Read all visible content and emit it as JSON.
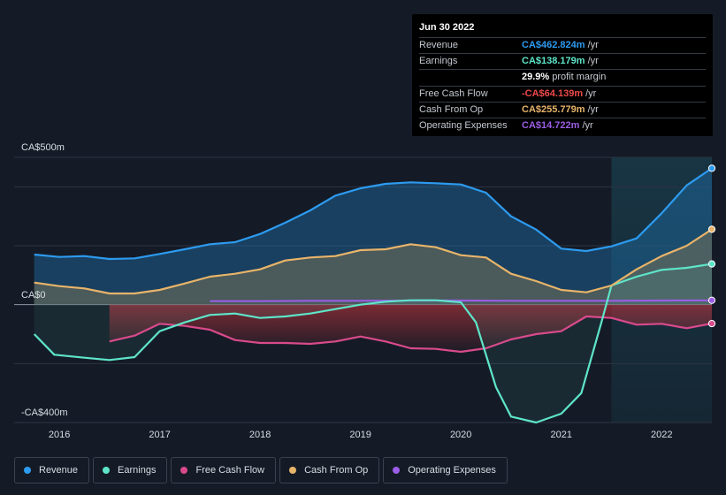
{
  "chart_data": {
    "type": "line",
    "y_axis": {
      "top_label": "CA$500m",
      "zero_label": "CA$0",
      "bottom_label": "-CA$400m",
      "range": [
        -400,
        500
      ]
    },
    "x_axis": {
      "ticks": [
        {
          "label": "2016",
          "t": 2016.0
        },
        {
          "label": "2017",
          "t": 2017.0
        },
        {
          "label": "2018",
          "t": 2018.0
        },
        {
          "label": "2019",
          "t": 2019.0
        },
        {
          "label": "2020",
          "t": 2020.0
        },
        {
          "label": "2021",
          "t": 2021.0
        },
        {
          "label": "2022",
          "t": 2022.0
        }
      ],
      "range": [
        2015.55,
        2022.5
      ],
      "forecast_start": 2021.5
    },
    "series": [
      {
        "name": "Revenue",
        "key": "revenue",
        "color": "#2d9bf0",
        "points": [
          [
            2015.75,
            170
          ],
          [
            2016.0,
            162
          ],
          [
            2016.25,
            165
          ],
          [
            2016.5,
            155
          ],
          [
            2016.75,
            157
          ],
          [
            2017.0,
            172
          ],
          [
            2017.25,
            188
          ],
          [
            2017.5,
            205
          ],
          [
            2017.75,
            212
          ],
          [
            2018.0,
            240
          ],
          [
            2018.25,
            278
          ],
          [
            2018.5,
            320
          ],
          [
            2018.75,
            370
          ],
          [
            2019.0,
            395
          ],
          [
            2019.25,
            410
          ],
          [
            2019.5,
            415
          ],
          [
            2019.75,
            412
          ],
          [
            2020.0,
            408
          ],
          [
            2020.25,
            380
          ],
          [
            2020.5,
            300
          ],
          [
            2020.75,
            255
          ],
          [
            2021.0,
            190
          ],
          [
            2021.25,
            182
          ],
          [
            2021.5,
            198
          ],
          [
            2021.75,
            225
          ],
          [
            2022.0,
            310
          ],
          [
            2022.25,
            405
          ],
          [
            2022.5,
            462.824
          ]
        ]
      },
      {
        "name": "Earnings",
        "key": "earnings",
        "color": "#5ee5c9",
        "points": [
          [
            2015.75,
            -100
          ],
          [
            2015.95,
            -170
          ],
          [
            2016.25,
            -180
          ],
          [
            2016.5,
            -188
          ],
          [
            2016.75,
            -178
          ],
          [
            2017.0,
            -90
          ],
          [
            2017.25,
            -60
          ],
          [
            2017.5,
            -35
          ],
          [
            2017.75,
            -30
          ],
          [
            2018.0,
            -45
          ],
          [
            2018.25,
            -40
          ],
          [
            2018.5,
            -30
          ],
          [
            2018.75,
            -15
          ],
          [
            2019.0,
            0
          ],
          [
            2019.25,
            10
          ],
          [
            2019.5,
            15
          ],
          [
            2019.75,
            15
          ],
          [
            2020.0,
            8
          ],
          [
            2020.15,
            -60
          ],
          [
            2020.35,
            -280
          ],
          [
            2020.5,
            -380
          ],
          [
            2020.75,
            -400
          ],
          [
            2021.0,
            -370
          ],
          [
            2021.2,
            -300
          ],
          [
            2021.4,
            -60
          ],
          [
            2021.5,
            65
          ],
          [
            2021.75,
            95
          ],
          [
            2022.0,
            118
          ],
          [
            2022.25,
            125
          ],
          [
            2022.5,
            138.179
          ]
        ]
      },
      {
        "name": "Free Cash Flow",
        "key": "fcf",
        "color": "#d94a8c",
        "points": [
          [
            2016.5,
            -125
          ],
          [
            2016.75,
            -105
          ],
          [
            2017.0,
            -65
          ],
          [
            2017.25,
            -72
          ],
          [
            2017.5,
            -85
          ],
          [
            2017.75,
            -120
          ],
          [
            2018.0,
            -130
          ],
          [
            2018.25,
            -130
          ],
          [
            2018.5,
            -133
          ],
          [
            2018.75,
            -125
          ],
          [
            2019.0,
            -108
          ],
          [
            2019.25,
            -125
          ],
          [
            2019.5,
            -148
          ],
          [
            2019.75,
            -150
          ],
          [
            2020.0,
            -160
          ],
          [
            2020.25,
            -148
          ],
          [
            2020.5,
            -118
          ],
          [
            2020.75,
            -100
          ],
          [
            2021.0,
            -90
          ],
          [
            2021.25,
            -40
          ],
          [
            2021.5,
            -45
          ],
          [
            2021.75,
            -68
          ],
          [
            2022.0,
            -65
          ],
          [
            2022.25,
            -80
          ],
          [
            2022.5,
            -64.139
          ]
        ]
      },
      {
        "name": "Cash From Op",
        "key": "cfo",
        "color": "#e8b46a",
        "points": [
          [
            2015.75,
            75
          ],
          [
            2016.0,
            63
          ],
          [
            2016.25,
            55
          ],
          [
            2016.5,
            38
          ],
          [
            2016.75,
            38
          ],
          [
            2017.0,
            50
          ],
          [
            2017.25,
            72
          ],
          [
            2017.5,
            95
          ],
          [
            2017.75,
            105
          ],
          [
            2018.0,
            120
          ],
          [
            2018.25,
            150
          ],
          [
            2018.5,
            160
          ],
          [
            2018.75,
            165
          ],
          [
            2019.0,
            185
          ],
          [
            2019.25,
            188
          ],
          [
            2019.5,
            205
          ],
          [
            2019.75,
            195
          ],
          [
            2020.0,
            168
          ],
          [
            2020.25,
            160
          ],
          [
            2020.5,
            105
          ],
          [
            2020.75,
            80
          ],
          [
            2021.0,
            50
          ],
          [
            2021.25,
            42
          ],
          [
            2021.5,
            65
          ],
          [
            2021.75,
            120
          ],
          [
            2022.0,
            165
          ],
          [
            2022.25,
            200
          ],
          [
            2022.5,
            255.779
          ]
        ]
      },
      {
        "name": "Operating Expenses",
        "key": "opex",
        "color": "#9b5de5",
        "points": [
          [
            2017.5,
            12
          ],
          [
            2018.0,
            12
          ],
          [
            2018.5,
            13
          ],
          [
            2019.0,
            13
          ],
          [
            2019.5,
            14
          ],
          [
            2020.0,
            14
          ],
          [
            2020.5,
            13
          ],
          [
            2021.0,
            13
          ],
          [
            2021.5,
            13
          ],
          [
            2022.0,
            14
          ],
          [
            2022.5,
            14.722
          ]
        ]
      }
    ]
  },
  "tooltip": {
    "date": "Jun 30 2022",
    "rows": [
      {
        "label": "Revenue",
        "value": "CA$462.824m",
        "unit": "/yr",
        "color": "#2d9bf0"
      },
      {
        "label": "Earnings",
        "value": "CA$138.179m",
        "unit": "/yr",
        "color": "#5ee5c9"
      },
      {
        "label": "",
        "value": "29.9%",
        "unit": "profit margin",
        "color": "#ffffff"
      },
      {
        "label": "Free Cash Flow",
        "value": "-CA$64.139m",
        "unit": "/yr",
        "color": "#ef4a4a"
      },
      {
        "label": "Cash From Op",
        "value": "CA$255.779m",
        "unit": "/yr",
        "color": "#e8b46a"
      },
      {
        "label": "Operating Expenses",
        "value": "CA$14.722m",
        "unit": "/yr",
        "color": "#9b5de5"
      }
    ]
  },
  "legend": [
    {
      "label": "Revenue",
      "color": "#2d9bf0"
    },
    {
      "label": "Earnings",
      "color": "#5ee5c9"
    },
    {
      "label": "Free Cash Flow",
      "color": "#d94a8c"
    },
    {
      "label": "Cash From Op",
      "color": "#e8b46a"
    },
    {
      "label": "Operating Expenses",
      "color": "#9b5de5"
    }
  ]
}
